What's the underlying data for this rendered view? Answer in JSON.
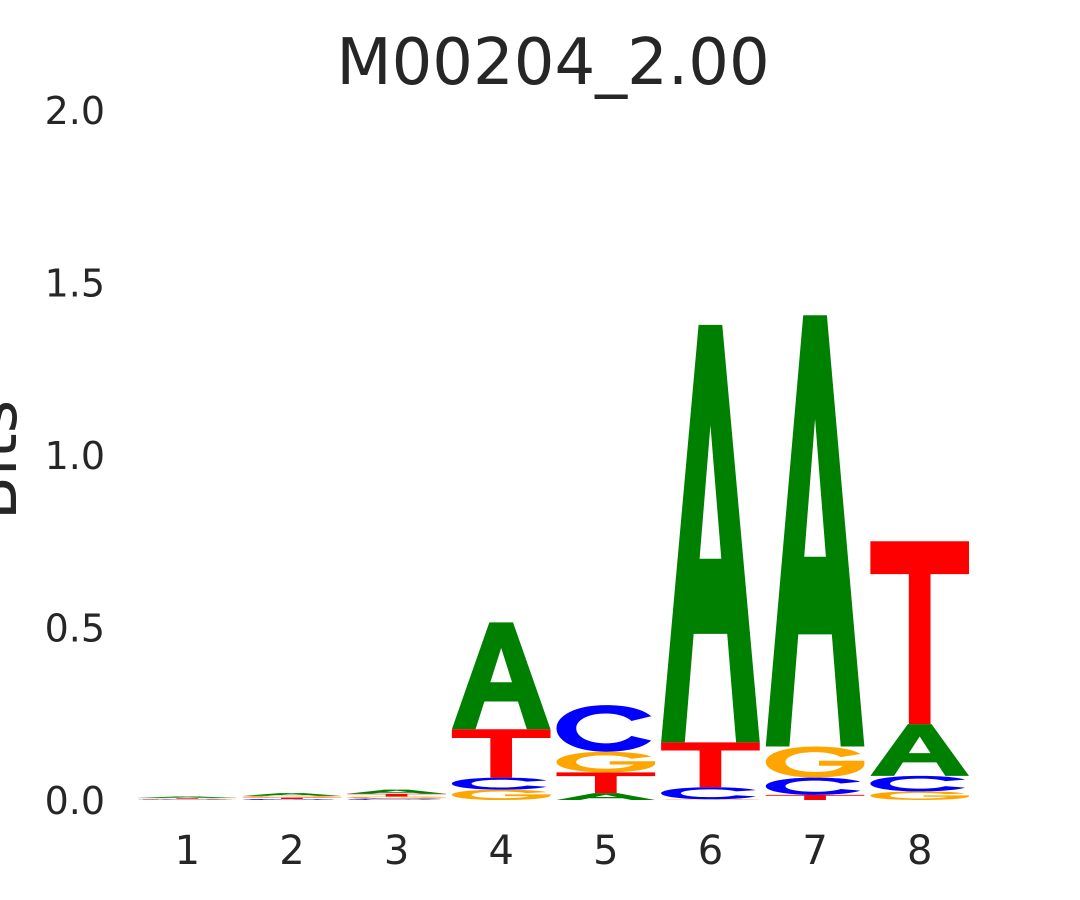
{
  "chart_data": {
    "type": "sequence-logo",
    "title": "M00204_2.00",
    "ylabel": "Bits",
    "xlabel": "",
    "ylim": [
      0,
      2.0
    ],
    "yticks": [
      "0.0",
      "0.5",
      "1.0",
      "1.5",
      "2.0"
    ],
    "positions": [
      "1",
      "2",
      "3",
      "4",
      "5",
      "6",
      "7",
      "8"
    ],
    "colors": {
      "A": "#008000",
      "C": "#0000ff",
      "G": "#ffa500",
      "T": "#ff0000"
    },
    "stacks": [
      [
        {
          "letter": "C",
          "value": 0.002
        },
        {
          "letter": "G",
          "value": 0.002
        },
        {
          "letter": "T",
          "value": 0.002
        },
        {
          "letter": "A",
          "value": 0.004
        }
      ],
      [
        {
          "letter": "C",
          "value": 0.003
        },
        {
          "letter": "T",
          "value": 0.004
        },
        {
          "letter": "G",
          "value": 0.005
        },
        {
          "letter": "A",
          "value": 0.008
        }
      ],
      [
        {
          "letter": "C",
          "value": 0.004
        },
        {
          "letter": "G",
          "value": 0.006
        },
        {
          "letter": "T",
          "value": 0.008
        },
        {
          "letter": "A",
          "value": 0.012
        }
      ],
      [
        {
          "letter": "G",
          "value": 0.03
        },
        {
          "letter": "C",
          "value": 0.035
        },
        {
          "letter": "T",
          "value": 0.14
        },
        {
          "letter": "A",
          "value": 0.31
        }
      ],
      [
        {
          "letter": "A",
          "value": 0.02
        },
        {
          "letter": "T",
          "value": 0.06
        },
        {
          "letter": "G",
          "value": 0.06
        },
        {
          "letter": "C",
          "value": 0.135
        }
      ],
      [
        {
          "letter": "G",
          "value": 0.002
        },
        {
          "letter": "C",
          "value": 0.035
        },
        {
          "letter": "T",
          "value": 0.13
        },
        {
          "letter": "A",
          "value": 1.21
        }
      ],
      [
        {
          "letter": "T",
          "value": 0.015
        },
        {
          "letter": "C",
          "value": 0.05
        },
        {
          "letter": "G",
          "value": 0.09
        },
        {
          "letter": "A",
          "value": 1.25
        }
      ],
      [
        {
          "letter": "G",
          "value": 0.025
        },
        {
          "letter": "C",
          "value": 0.045
        },
        {
          "letter": "A",
          "value": 0.15
        },
        {
          "letter": "T",
          "value": 0.53
        }
      ]
    ]
  }
}
